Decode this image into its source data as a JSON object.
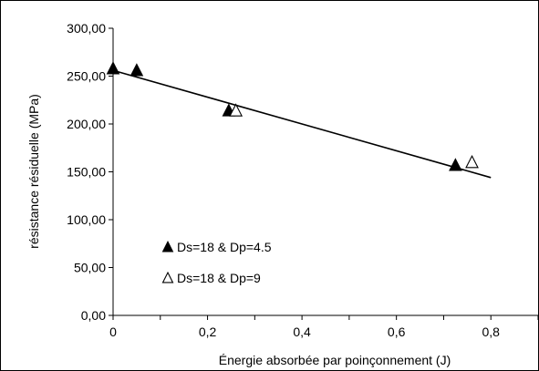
{
  "chart_data": {
    "type": "scatter",
    "title": "",
    "xlabel": "Énergie absorbée par poinçonnement (J)",
    "ylabel": "résistance résiduelle (MPa)",
    "xlim": [
      0,
      0.9
    ],
    "ylim": [
      0,
      300
    ],
    "x_ticks": [
      0,
      0.2,
      0.4,
      0.6,
      0.8
    ],
    "x_tick_labels": [
      "0",
      "0,2",
      "0,4",
      "0,6",
      "0,8"
    ],
    "y_ticks": [
      0,
      50,
      100,
      150,
      200,
      250,
      300
    ],
    "y_tick_labels": [
      "0,00",
      "50,00",
      "100,00",
      "150,00",
      "200,00",
      "250,00",
      "300,00"
    ],
    "grid": false,
    "legend_position": "lower-left",
    "series": [
      {
        "name": "Ds=18 & Dp=4.5",
        "marker": "filled-triangle",
        "color": "#000000",
        "points": [
          [
            0.0,
            258
          ],
          [
            0.05,
            256
          ],
          [
            0.245,
            214
          ],
          [
            0.725,
            157
          ]
        ]
      },
      {
        "name": "Ds=18 & Dp=9",
        "marker": "open-triangle",
        "color": "#000000",
        "points": [
          [
            0.26,
            214
          ],
          [
            0.76,
            160
          ]
        ]
      }
    ],
    "trendline": {
      "x": [
        0.0,
        0.8
      ],
      "y": [
        256,
        144
      ]
    }
  }
}
